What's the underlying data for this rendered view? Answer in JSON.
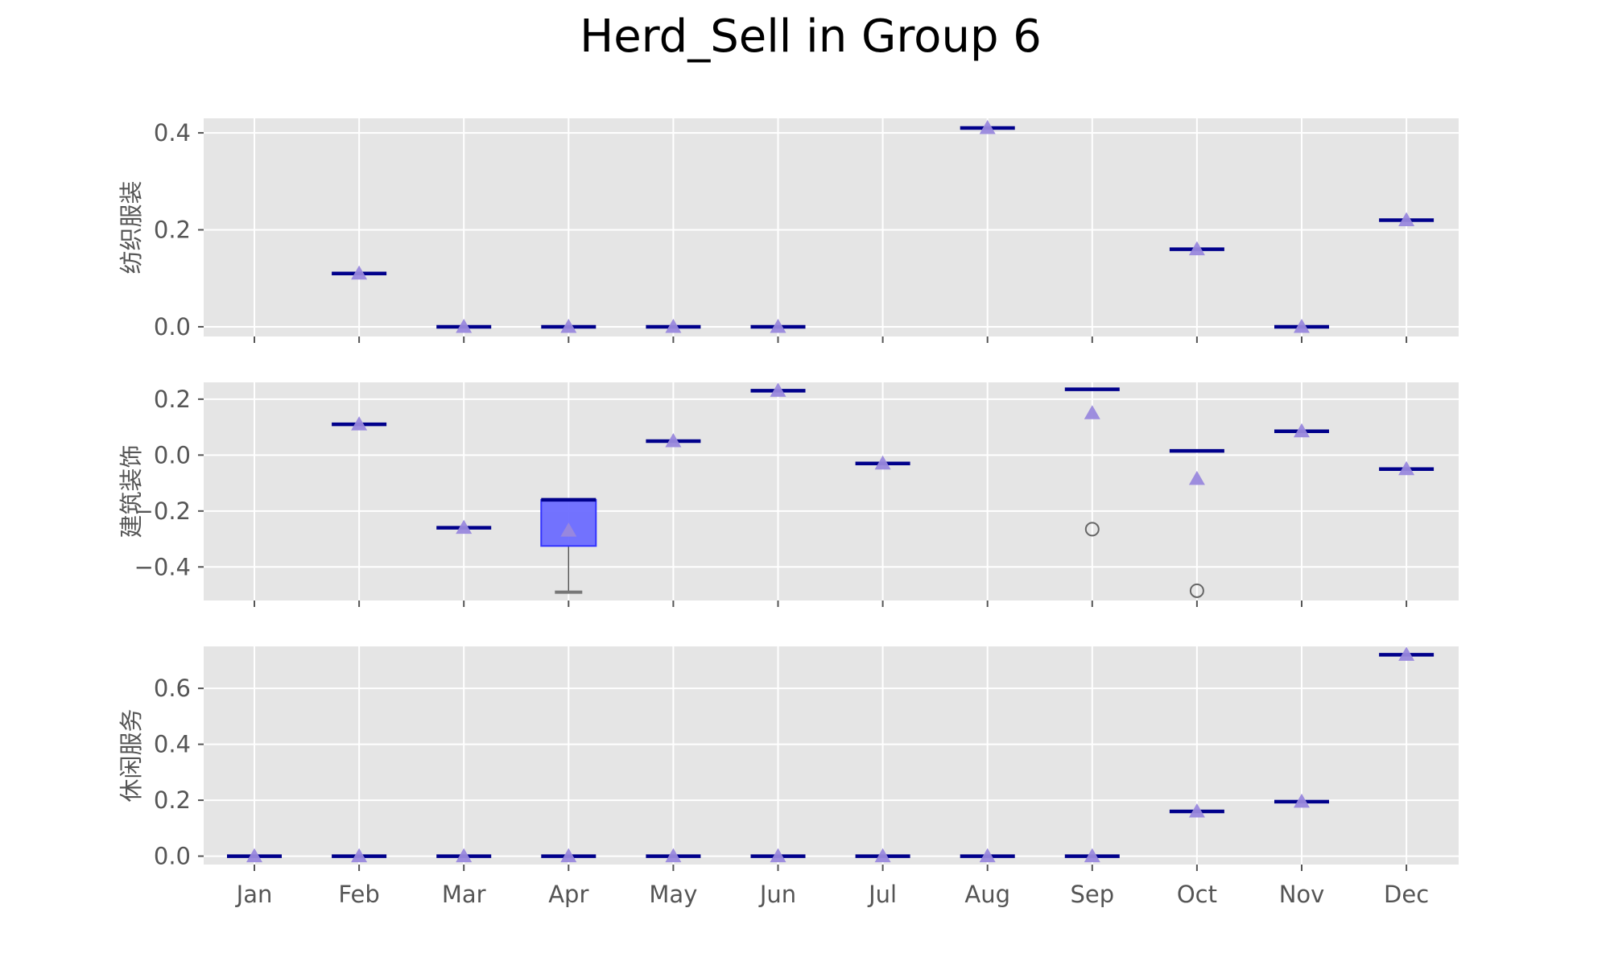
{
  "chart_data": {
    "type": "box",
    "title": "Herd_Sell in Group 6",
    "categories": [
      "Jan",
      "Feb",
      "Mar",
      "Apr",
      "May",
      "Jun",
      "Jul",
      "Aug",
      "Sep",
      "Oct",
      "Nov",
      "Dec"
    ],
    "grid": true,
    "colors": {
      "background": "#e5e5e5",
      "grid": "#ffffff",
      "median": "#00008b",
      "mean_marker": "#9988dd",
      "box_fill": "#6b6bff",
      "box_edge": "#3333ff",
      "whisker": "#555555",
      "cap": "#777777",
      "flier": "#666666",
      "tick_label": "#555555"
    },
    "subplots": [
      {
        "ylabel": "纺织服装",
        "ylim": [
          -0.02,
          0.43
        ],
        "yticks": [
          0.0,
          0.2,
          0.4
        ],
        "ytick_labels": [
          "0.0",
          "0.2",
          "0.4"
        ],
        "boxes": [
          null,
          {
            "median": 0.11,
            "mean": 0.11,
            "q1": 0.11,
            "q3": 0.11,
            "whislo": 0.11,
            "whishi": 0.11,
            "fliers": []
          },
          {
            "median": 0.0,
            "mean": 0.0,
            "q1": 0.0,
            "q3": 0.0,
            "whislo": 0.0,
            "whishi": 0.0,
            "fliers": []
          },
          {
            "median": 0.0,
            "mean": 0.0,
            "q1": 0.0,
            "q3": 0.0,
            "whislo": 0.0,
            "whishi": 0.0,
            "fliers": []
          },
          {
            "median": 0.0,
            "mean": 0.0,
            "q1": 0.0,
            "q3": 0.0,
            "whislo": 0.0,
            "whishi": 0.0,
            "fliers": []
          },
          {
            "median": 0.0,
            "mean": 0.0,
            "q1": 0.0,
            "q3": 0.0,
            "whislo": 0.0,
            "whishi": 0.0,
            "fliers": []
          },
          null,
          {
            "median": 0.41,
            "mean": 0.41,
            "q1": 0.41,
            "q3": 0.41,
            "whislo": 0.41,
            "whishi": 0.41,
            "fliers": []
          },
          null,
          {
            "median": 0.16,
            "mean": 0.16,
            "q1": 0.16,
            "q3": 0.16,
            "whislo": 0.16,
            "whishi": 0.16,
            "fliers": []
          },
          {
            "median": 0.0,
            "mean": 0.0,
            "q1": 0.0,
            "q3": 0.0,
            "whislo": 0.0,
            "whishi": 0.0,
            "fliers": []
          },
          {
            "median": 0.22,
            "mean": 0.22,
            "q1": 0.22,
            "q3": 0.22,
            "whislo": 0.22,
            "whishi": 0.22,
            "fliers": []
          }
        ]
      },
      {
        "ylabel": "建筑装饰",
        "ylim": [
          -0.52,
          0.26
        ],
        "yticks": [
          -0.4,
          -0.2,
          0.0,
          0.2
        ],
        "ytick_labels": [
          "−0.4",
          "−0.2",
          "0.0",
          "0.2"
        ],
        "boxes": [
          null,
          {
            "median": 0.11,
            "mean": 0.11,
            "q1": 0.11,
            "q3": 0.11,
            "whislo": 0.11,
            "whishi": 0.11,
            "fliers": []
          },
          {
            "median": -0.26,
            "mean": -0.26,
            "q1": -0.26,
            "q3": -0.26,
            "whislo": -0.26,
            "whishi": -0.26,
            "fliers": []
          },
          {
            "median": -0.16,
            "mean": -0.27,
            "q1": -0.325,
            "q3": -0.16,
            "whislo": -0.49,
            "whishi": -0.16,
            "fliers": []
          },
          {
            "median": 0.05,
            "mean": 0.05,
            "q1": 0.05,
            "q3": 0.05,
            "whislo": 0.05,
            "whishi": 0.05,
            "fliers": []
          },
          {
            "median": 0.23,
            "mean": 0.23,
            "q1": 0.23,
            "q3": 0.23,
            "whislo": 0.23,
            "whishi": 0.23,
            "fliers": []
          },
          {
            "median": -0.03,
            "mean": -0.03,
            "q1": -0.03,
            "q3": -0.03,
            "whislo": -0.03,
            "whishi": -0.03,
            "fliers": []
          },
          null,
          {
            "median": 0.235,
            "mean": 0.15,
            "q1": 0.235,
            "q3": 0.235,
            "whislo": 0.235,
            "whishi": 0.235,
            "fliers": [
              -0.265
            ]
          },
          {
            "median": 0.015,
            "mean": -0.085,
            "q1": 0.015,
            "q3": 0.015,
            "whislo": 0.015,
            "whishi": 0.015,
            "fliers": [
              -0.485
            ]
          },
          {
            "median": 0.085,
            "mean": 0.085,
            "q1": 0.085,
            "q3": 0.085,
            "whislo": 0.085,
            "whishi": 0.085,
            "fliers": []
          },
          {
            "median": -0.05,
            "mean": -0.05,
            "q1": -0.05,
            "q3": -0.05,
            "whislo": -0.05,
            "whishi": -0.05,
            "fliers": []
          }
        ]
      },
      {
        "ylabel": "休闲服务",
        "ylim": [
          -0.03,
          0.75
        ],
        "yticks": [
          0.0,
          0.2,
          0.4,
          0.6
        ],
        "ytick_labels": [
          "0.0",
          "0.2",
          "0.4",
          "0.6"
        ],
        "boxes": [
          {
            "median": 0.0,
            "mean": 0.0,
            "q1": 0.0,
            "q3": 0.0,
            "whislo": 0.0,
            "whishi": 0.0,
            "fliers": []
          },
          {
            "median": 0.0,
            "mean": 0.0,
            "q1": 0.0,
            "q3": 0.0,
            "whislo": 0.0,
            "whishi": 0.0,
            "fliers": []
          },
          {
            "median": 0.0,
            "mean": 0.0,
            "q1": 0.0,
            "q3": 0.0,
            "whislo": 0.0,
            "whishi": 0.0,
            "fliers": []
          },
          {
            "median": 0.0,
            "mean": 0.0,
            "q1": 0.0,
            "q3": 0.0,
            "whislo": 0.0,
            "whishi": 0.0,
            "fliers": []
          },
          {
            "median": 0.0,
            "mean": 0.0,
            "q1": 0.0,
            "q3": 0.0,
            "whislo": 0.0,
            "whishi": 0.0,
            "fliers": []
          },
          {
            "median": 0.0,
            "mean": 0.0,
            "q1": 0.0,
            "q3": 0.0,
            "whislo": 0.0,
            "whishi": 0.0,
            "fliers": []
          },
          {
            "median": 0.0,
            "mean": 0.0,
            "q1": 0.0,
            "q3": 0.0,
            "whislo": 0.0,
            "whishi": 0.0,
            "fliers": []
          },
          {
            "median": 0.0,
            "mean": 0.0,
            "q1": 0.0,
            "q3": 0.0,
            "whislo": 0.0,
            "whishi": 0.0,
            "fliers": []
          },
          {
            "median": 0.0,
            "mean": 0.0,
            "q1": 0.0,
            "q3": 0.0,
            "whislo": 0.0,
            "whishi": 0.0,
            "fliers": []
          },
          {
            "median": 0.16,
            "mean": 0.16,
            "q1": 0.16,
            "q3": 0.16,
            "whislo": 0.16,
            "whishi": 0.16,
            "fliers": []
          },
          {
            "median": 0.195,
            "mean": 0.195,
            "q1": 0.195,
            "q3": 0.195,
            "whislo": 0.195,
            "whishi": 0.195,
            "fliers": []
          },
          {
            "median": 0.72,
            "mean": 0.72,
            "q1": 0.72,
            "q3": 0.72,
            "whislo": 0.72,
            "whishi": 0.72,
            "fliers": []
          }
        ]
      }
    ]
  }
}
